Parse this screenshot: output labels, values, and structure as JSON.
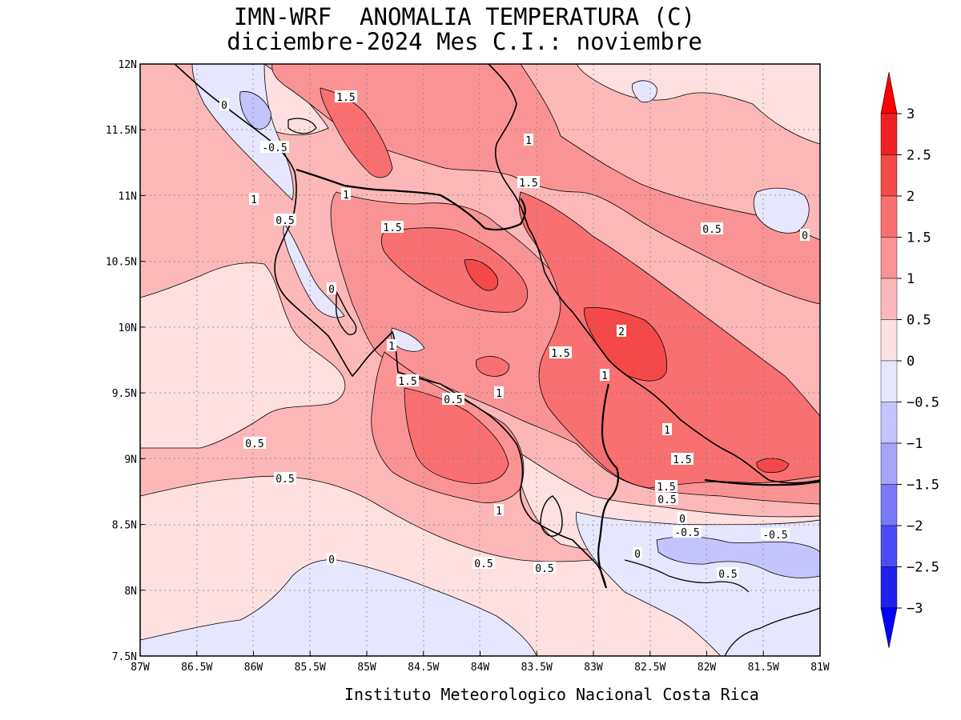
{
  "title": {
    "line1": "IMN-WRF  ANOMALIA TEMPERATURA (C)",
    "line2": "diciembre-2024 Mes C.I.: noviembre"
  },
  "footer": "Instituto Meteorologico Nacional Costa Rica",
  "axes": {
    "x_ticks": [
      "87W",
      "86.5W",
      "86W",
      "85.5W",
      "85W",
      "84.5W",
      "84W",
      "83.5W",
      "83W",
      "82.5W",
      "82W",
      "81.5W",
      "81W"
    ],
    "y_ticks": [
      "12N",
      "11.5N",
      "11N",
      "10.5N",
      "10N",
      "9.5N",
      "9N",
      "8.5N",
      "8N",
      "7.5N"
    ],
    "grid": true
  },
  "colorbar": {
    "labels": [
      "3",
      "2.5",
      "2",
      "1.5",
      "1",
      "0.5",
      "0",
      "−0.5",
      "−1",
      "−1.5",
      "−2",
      "−2.5",
      "−3"
    ],
    "colors": [
      "#ee2222",
      "#f54848",
      "#f87070",
      "#fa9494",
      "#fcb8b8",
      "#fee0e0",
      "#e6e6ff",
      "#c4c4fd",
      "#a4a4fb",
      "#7878f8",
      "#4b4bf5",
      "#2020ef"
    ],
    "top_arrow_color": "#ff0000",
    "bottom_arrow_color": "#0000ff"
  },
  "contour_labels": [
    {
      "text": "0"
    },
    {
      "text": "1.5"
    },
    {
      "text": "-0.5"
    },
    {
      "text": "1"
    },
    {
      "text": "1"
    },
    {
      "text": "0.5"
    },
    {
      "text": "1.5"
    },
    {
      "text": "1"
    },
    {
      "text": "1.5"
    },
    {
      "text": "0.5"
    },
    {
      "text": "0"
    },
    {
      "text": "0"
    },
    {
      "text": "2"
    },
    {
      "text": "1"
    },
    {
      "text": "1.5"
    },
    {
      "text": "1"
    },
    {
      "text": "1.5"
    },
    {
      "text": "0.5"
    },
    {
      "text": "1"
    },
    {
      "text": "1"
    },
    {
      "text": "0.5"
    },
    {
      "text": "1.5"
    },
    {
      "text": "0.5"
    },
    {
      "text": "1.5"
    },
    {
      "text": "0.5"
    },
    {
      "text": "1"
    },
    {
      "text": "0"
    },
    {
      "text": "-0.5"
    },
    {
      "text": "-0.5"
    },
    {
      "text": "0"
    },
    {
      "text": "0.5"
    },
    {
      "text": "0"
    },
    {
      "text": "0.5"
    },
    {
      "text": "0.5"
    }
  ]
}
